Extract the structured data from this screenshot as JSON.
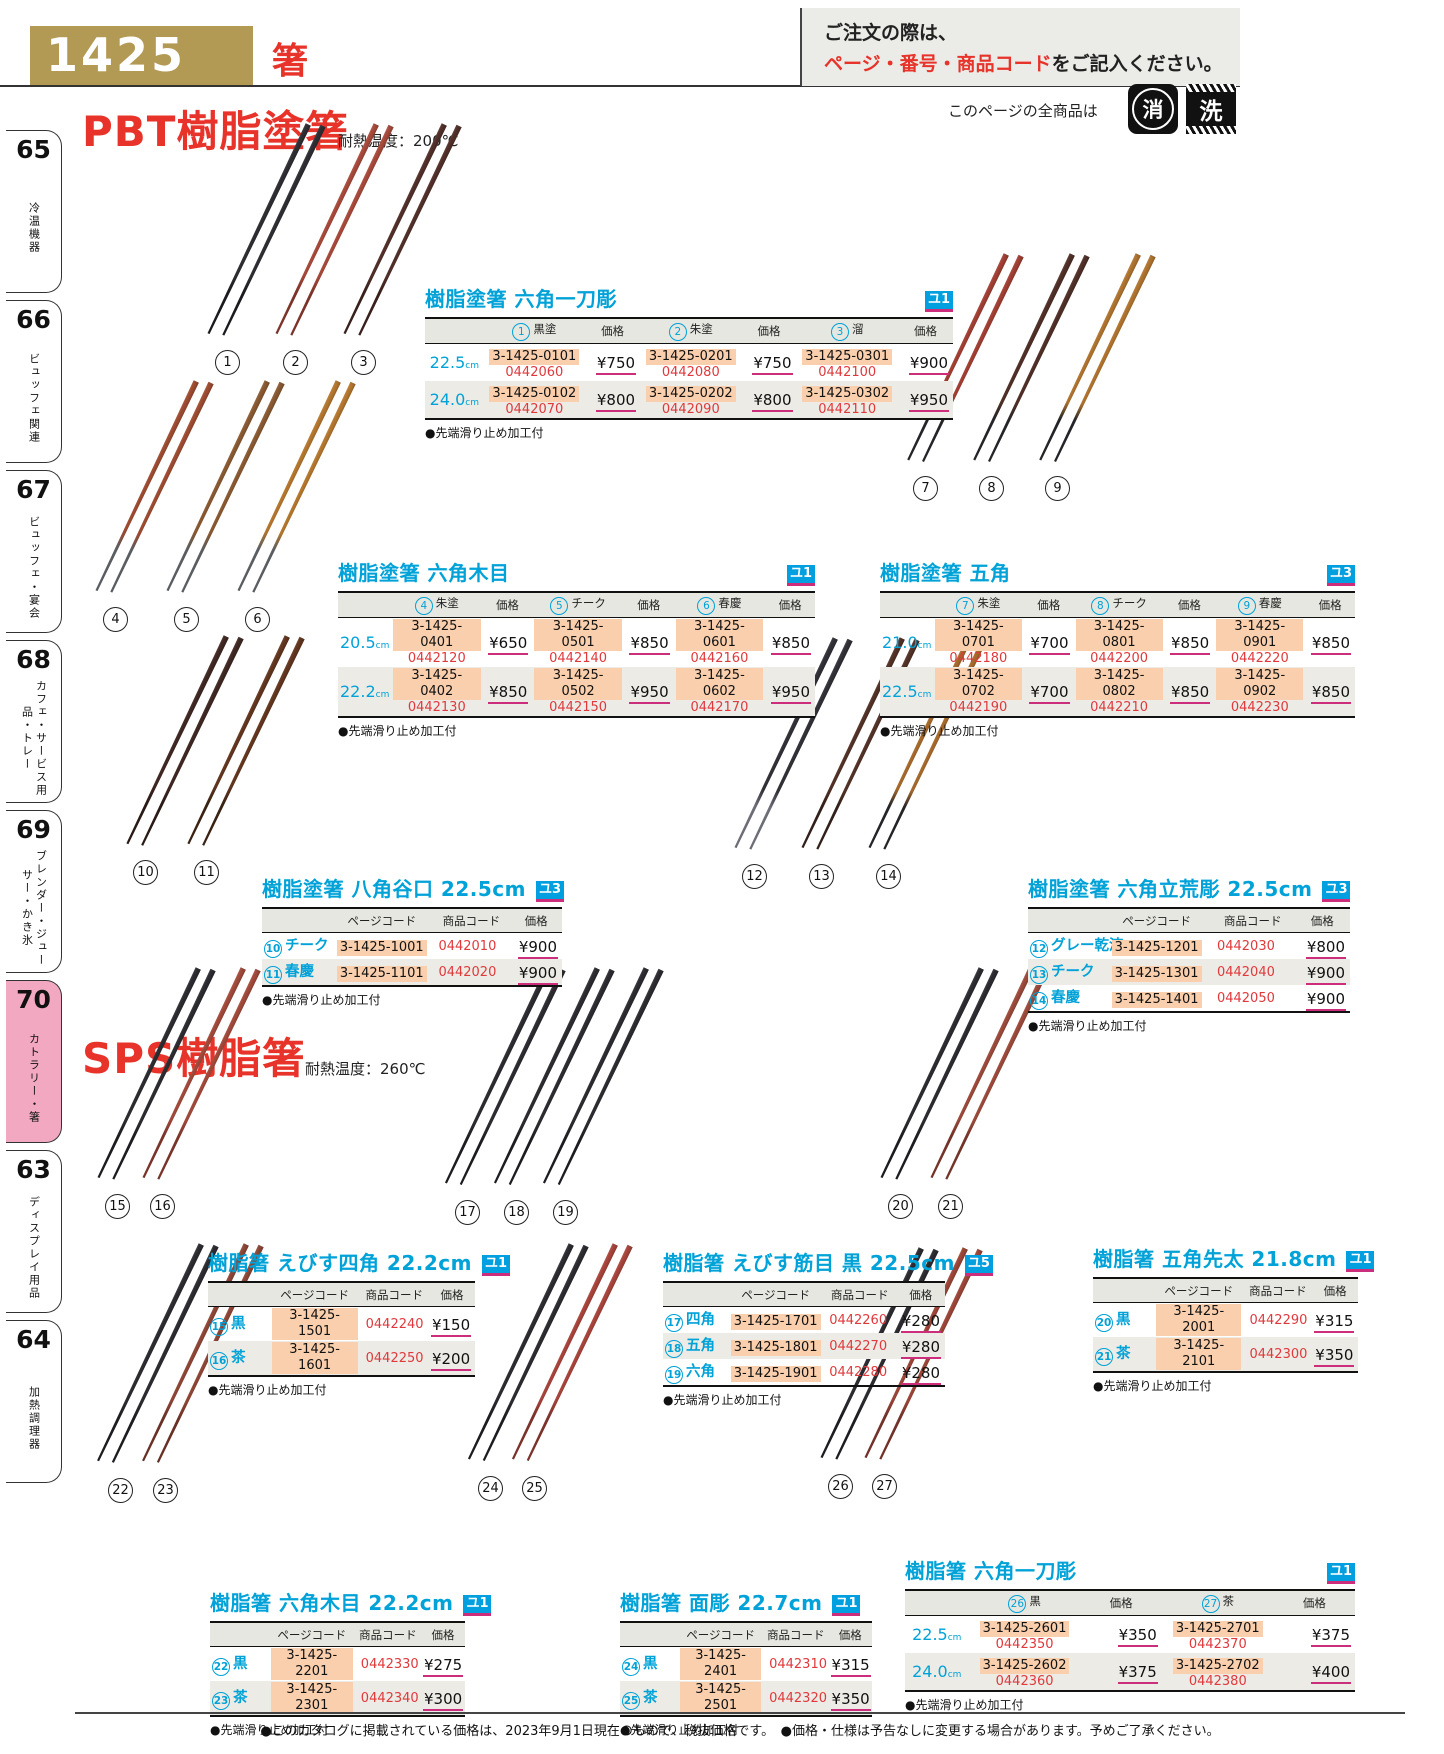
{
  "header": {
    "page_number": "1425",
    "category": "箸",
    "order_line1": "ご注文の際は、",
    "order_highlight": "ページ・番号・商品コード",
    "order_line2": "をご記入ください。",
    "all_products": "このページの全商品は",
    "mark_erase": "消",
    "mark_wash": "洗"
  },
  "sections": {
    "pbt": {
      "title": "PBT樹脂塗箸",
      "note": "耐熱温度：200℃"
    },
    "sps": {
      "title": "SPS樹脂箸",
      "note": "耐熱温度：260℃"
    }
  },
  "labels": {
    "price": "価格",
    "page_code": "ページコード",
    "product_code": "商品コード",
    "cm": "cm"
  },
  "sidebar": [
    {
      "num": "65",
      "label": "冷温機器",
      "active": false
    },
    {
      "num": "66",
      "label": "ビュッフェ関連",
      "active": false
    },
    {
      "num": "67",
      "label": "ビュッフェ・宴会",
      "active": false
    },
    {
      "num": "68",
      "label": "カフェ・サービス用品・トレー",
      "active": false
    },
    {
      "num": "69",
      "label": "ブレンダー・ジューサー・かき氷",
      "active": false
    },
    {
      "num": "70",
      "label": "カトラリー・箸",
      "active": true
    },
    {
      "num": "63",
      "label": "ディスプレイ用品",
      "active": false
    },
    {
      "num": "64",
      "label": "加熱調理器",
      "active": false
    }
  ],
  "products": [
    {
      "num": "1",
      "label": "黒塗",
      "body": "#2e2e33",
      "tip": "#1c1c20"
    },
    {
      "num": "2",
      "label": "朱塗",
      "body": "#a84a3b",
      "tip": "#7e352c"
    },
    {
      "num": "3",
      "label": "溜",
      "body": "#52302a",
      "tip": "#3a211d"
    },
    {
      "num": "4",
      "label": "朱塗",
      "body": "#9e4c31",
      "tip": "#5c6064"
    },
    {
      "num": "5",
      "label": "チーク",
      "body": "#8a5a32",
      "tip": "#5c6064"
    },
    {
      "num": "6",
      "label": "春慶",
      "body": "#b5772e",
      "tip": "#5c6064"
    },
    {
      "num": "7",
      "label": "朱塗",
      "body": "#a23f33",
      "tip": "#26262a"
    },
    {
      "num": "8",
      "label": "チーク",
      "body": "#503028",
      "tip": "#26262a"
    },
    {
      "num": "9",
      "label": "春慶",
      "body": "#b0742f",
      "tip": "#26262a"
    },
    {
      "num": "10",
      "label": "チーク",
      "body": "#402823",
      "tip": "#2b1b16"
    },
    {
      "num": "11",
      "label": "春慶",
      "body": "#63361f",
      "tip": "#3c2414"
    },
    {
      "num": "12",
      "label": "グレー乾漆",
      "body": "#313137",
      "tip": "#70707a"
    },
    {
      "num": "13",
      "label": "チーク",
      "body": "#533227",
      "tip": "#33211b"
    },
    {
      "num": "14",
      "label": "春慶",
      "body": "#a76a2c",
      "tip": "#26262a"
    },
    {
      "num": "15",
      "label": "黒",
      "body": "#2c2c31",
      "tip": "#1d1d22"
    },
    {
      "num": "16",
      "label": "茶",
      "body": "#a24a3b",
      "tip": "#7c352b"
    },
    {
      "num": "17",
      "label": "四角",
      "body": "#2c2c31",
      "tip": "#1d1d22"
    },
    {
      "num": "18",
      "label": "五角",
      "body": "#2c2c31",
      "tip": "#1d1d22"
    },
    {
      "num": "19",
      "label": "六角",
      "body": "#2c2c31",
      "tip": "#1d1d22"
    },
    {
      "num": "20",
      "label": "黒",
      "body": "#2c2c31",
      "tip": "#1d1d22"
    },
    {
      "num": "21",
      "label": "茶",
      "body": "#9c4a3b",
      "tip": "#76352a"
    },
    {
      "num": "22",
      "label": "黒",
      "body": "#2c2c31",
      "tip": "#1d1d22"
    },
    {
      "num": "23",
      "label": "茶",
      "body": "#8f4636",
      "tip": "#6b3227"
    },
    {
      "num": "24",
      "label": "黒",
      "body": "#2c2c31",
      "tip": "#1d1d22"
    },
    {
      "num": "25",
      "label": "茶",
      "body": "#a8443b",
      "tip": "#7e332b"
    },
    {
      "num": "26",
      "label": "黒",
      "body": "#2c2c31",
      "tip": "#1d1d22"
    },
    {
      "num": "27",
      "label": "茶",
      "body": "#9c4638",
      "tip": "#74332a"
    }
  ],
  "tables": [
    {
      "id": "t1",
      "title": "樹脂塗箸 六角一刀彫",
      "badge": "ユ1",
      "type": "matrix",
      "columns": [
        {
          "num": "1",
          "name": "黒塗"
        },
        {
          "num": "2",
          "name": "朱塗"
        },
        {
          "num": "3",
          "name": "溜"
        }
      ],
      "rows": [
        {
          "size": "22.5",
          "cells": [
            {
              "page": "3-1425-0101",
              "code": "0442060",
              "price": "¥750"
            },
            {
              "page": "3-1425-0201",
              "code": "0442080",
              "price": "¥750"
            },
            {
              "page": "3-1425-0301",
              "code": "0442100",
              "price": "¥900"
            }
          ]
        },
        {
          "size": "24.0",
          "cells": [
            {
              "page": "3-1425-0102",
              "code": "0442070",
              "price": "¥800"
            },
            {
              "page": "3-1425-0202",
              "code": "0442090",
              "price": "¥800"
            },
            {
              "page": "3-1425-0302",
              "code": "0442110",
              "price": "¥950"
            }
          ]
        }
      ],
      "note": "●先端滑り止め加工付"
    },
    {
      "id": "t2",
      "title": "樹脂塗箸 六角木目",
      "badge": "ユ1",
      "type": "matrix",
      "columns": [
        {
          "num": "4",
          "name": "朱塗"
        },
        {
          "num": "5",
          "name": "チーク"
        },
        {
          "num": "6",
          "name": "春慶"
        }
      ],
      "rows": [
        {
          "size": "20.5",
          "cells": [
            {
              "page": "3-1425-0401",
              "code": "0442120",
              "price": "¥650"
            },
            {
              "page": "3-1425-0501",
              "code": "0442140",
              "price": "¥850"
            },
            {
              "page": "3-1425-0601",
              "code": "0442160",
              "price": "¥850"
            }
          ]
        },
        {
          "size": "22.2",
          "cells": [
            {
              "page": "3-1425-0402",
              "code": "0442130",
              "price": "¥850"
            },
            {
              "page": "3-1425-0502",
              "code": "0442150",
              "price": "¥950"
            },
            {
              "page": "3-1425-0602",
              "code": "0442170",
              "price": "¥950"
            }
          ]
        }
      ],
      "note": "●先端滑り止め加工付"
    },
    {
      "id": "t3",
      "title": "樹脂塗箸 五角",
      "badge": "ユ3",
      "type": "matrix",
      "columns": [
        {
          "num": "7",
          "name": "朱塗"
        },
        {
          "num": "8",
          "name": "チーク"
        },
        {
          "num": "9",
          "name": "春慶"
        }
      ],
      "rows": [
        {
          "size": "21.0",
          "cells": [
            {
              "page": "3-1425-0701",
              "code": "0442180",
              "price": "¥700"
            },
            {
              "page": "3-1425-0801",
              "code": "0442200",
              "price": "¥850"
            },
            {
              "page": "3-1425-0901",
              "code": "0442220",
              "price": "¥850"
            }
          ]
        },
        {
          "size": "22.5",
          "cells": [
            {
              "page": "3-1425-0702",
              "code": "0442190",
              "price": "¥700"
            },
            {
              "page": "3-1425-0802",
              "code": "0442210",
              "price": "¥850"
            },
            {
              "page": "3-1425-0902",
              "code": "0442230",
              "price": "¥850"
            }
          ]
        }
      ],
      "note": "●先端滑り止め加工付"
    },
    {
      "id": "t4",
      "title": "樹脂塗箸 八角谷口 22.5cm",
      "badge": "ユ3",
      "type": "list",
      "headers": [
        "ページコード",
        "商品コード",
        "価格"
      ],
      "rows": [
        {
          "num": "10",
          "name": "チーク",
          "page": "3-1425-1001",
          "code": "0442010",
          "price": "¥900"
        },
        {
          "num": "11",
          "name": "春慶",
          "page": "3-1425-1101",
          "code": "0442020",
          "price": "¥900"
        }
      ],
      "note": "●先端滑り止め加工付"
    },
    {
      "id": "t5",
      "title": "樹脂塗箸 六角立荒彫 22.5cm",
      "badge": "ユ3",
      "type": "list",
      "headers": [
        "ページコード",
        "商品コード",
        "価格"
      ],
      "rows": [
        {
          "num": "12",
          "name": "グレー乾漆",
          "page": "3-1425-1201",
          "code": "0442030",
          "price": "¥800"
        },
        {
          "num": "13",
          "name": "チーク",
          "page": "3-1425-1301",
          "code": "0442040",
          "price": "¥900"
        },
        {
          "num": "14",
          "name": "春慶",
          "page": "3-1425-1401",
          "code": "0442050",
          "price": "¥900"
        }
      ],
      "note": "●先端滑り止め加工付"
    },
    {
      "id": "t6",
      "title": "樹脂箸 えびす四角 22.2cm",
      "badge": "ユ1",
      "type": "list",
      "headers": [
        "ページコード",
        "商品コード",
        "価格"
      ],
      "rows": [
        {
          "num": "15",
          "name": "黒",
          "page": "3-1425-1501",
          "code": "0442240",
          "price": "¥150"
        },
        {
          "num": "16",
          "name": "茶",
          "page": "3-1425-1601",
          "code": "0442250",
          "price": "¥200"
        }
      ],
      "note": "●先端滑り止め加工付"
    },
    {
      "id": "t7",
      "title": "樹脂箸 えびす筋目 黒 22.5cm",
      "badge": "ユ5",
      "type": "list",
      "headers": [
        "ページコード",
        "商品コード",
        "価格"
      ],
      "rows": [
        {
          "num": "17",
          "name": "四角",
          "page": "3-1425-1701",
          "code": "0442260",
          "price": "¥280"
        },
        {
          "num": "18",
          "name": "五角",
          "page": "3-1425-1801",
          "code": "0442270",
          "price": "¥280"
        },
        {
          "num": "19",
          "name": "六角",
          "page": "3-1425-1901",
          "code": "0442280",
          "price": "¥280"
        }
      ],
      "note": "●先端滑り止め加工付"
    },
    {
      "id": "t8",
      "title": "樹脂箸 五角先太 21.8cm",
      "badge": "ユ1",
      "type": "list",
      "headers": [
        "ページコード",
        "商品コード",
        "価格"
      ],
      "rows": [
        {
          "num": "20",
          "name": "黒",
          "page": "3-1425-2001",
          "code": "0442290",
          "price": "¥315"
        },
        {
          "num": "21",
          "name": "茶",
          "page": "3-1425-2101",
          "code": "0442300",
          "price": "¥350"
        }
      ],
      "note": "●先端滑り止め加工付"
    },
    {
      "id": "t9",
      "title": "樹脂箸 六角木目 22.2cm",
      "badge": "ユ1",
      "type": "list",
      "headers": [
        "ページコード",
        "商品コード",
        "価格"
      ],
      "rows": [
        {
          "num": "22",
          "name": "黒",
          "page": "3-1425-2201",
          "code": "0442330",
          "price": "¥275"
        },
        {
          "num": "23",
          "name": "茶",
          "page": "3-1425-2301",
          "code": "0442340",
          "price": "¥300"
        }
      ],
      "note": "●先端滑り止め加工付"
    },
    {
      "id": "t10",
      "title": "樹脂箸 面彫 22.7cm",
      "badge": "ユ1",
      "type": "list",
      "headers": [
        "ページコード",
        "商品コード",
        "価格"
      ],
      "rows": [
        {
          "num": "24",
          "name": "黒",
          "page": "3-1425-2401",
          "code": "0442310",
          "price": "¥315"
        },
        {
          "num": "25",
          "name": "茶",
          "page": "3-1425-2501",
          "code": "0442320",
          "price": "¥350"
        }
      ],
      "note": "●先端滑り止め加工付"
    },
    {
      "id": "t11",
      "title": "樹脂箸 六角一刀彫",
      "badge": "ユ1",
      "type": "matrix",
      "columns": [
        {
          "num": "26",
          "name": "黒"
        },
        {
          "num": "27",
          "name": "茶"
        }
      ],
      "rows": [
        {
          "size": "22.5",
          "cells": [
            {
              "page": "3-1425-2601",
              "code": "0442350",
              "price": "¥350"
            },
            {
              "page": "3-1425-2701",
              "code": "0442370",
              "price": "¥375"
            }
          ]
        },
        {
          "size": "24.0",
          "cells": [
            {
              "page": "3-1425-2602",
              "code": "0442360",
              "price": "¥375"
            },
            {
              "page": "3-1425-2702",
              "code": "0442380",
              "price": "¥400"
            }
          ]
        }
      ],
      "note": "●先端滑り止め加工付"
    }
  ],
  "footer": {
    "note": "●このカタログに掲載されている価格は、2023年9月1日現在のもので、税抜価格です。　●価格・仕様は予告なしに変更する場合があります。予めご了承ください。"
  }
}
